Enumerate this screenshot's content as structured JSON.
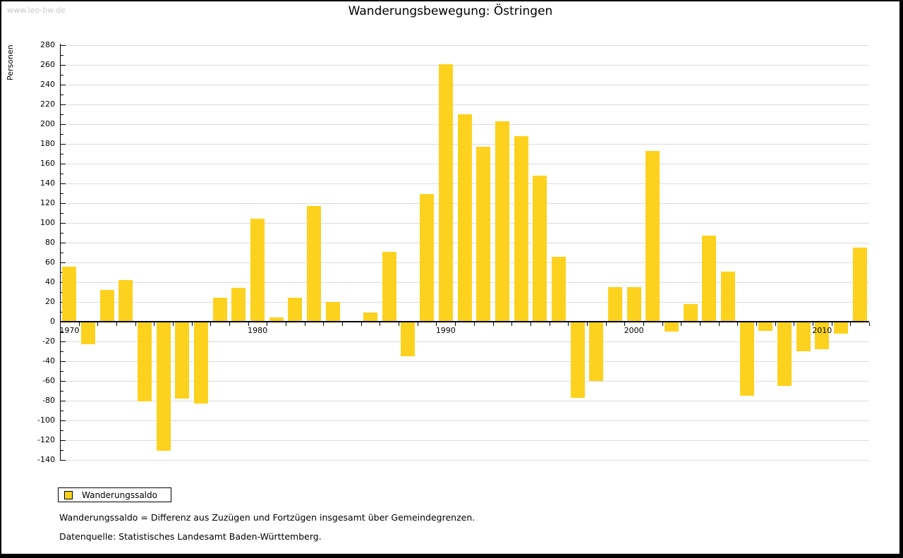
{
  "page": {
    "watermark": "www.leo-bw.de",
    "title": "Wanderungsbewegung: Östringen"
  },
  "chart_data": {
    "type": "bar",
    "title": "Wanderungsbewegung: Östringen",
    "xlabel": "",
    "ylabel": "Personen",
    "ylim": [
      -140,
      280
    ],
    "ytick_step": 20,
    "yticks": [
      280,
      260,
      240,
      220,
      200,
      180,
      160,
      140,
      120,
      100,
      80,
      60,
      40,
      20,
      0,
      -20,
      -40,
      -60,
      -80,
      -100,
      -120,
      -140
    ],
    "grid": true,
    "legend_position": "bottom-left",
    "series_name": "Wanderungssaldo",
    "bar_color": "#FCD21E",
    "categories": [
      1970,
      1971,
      1972,
      1973,
      1974,
      1975,
      1976,
      1977,
      1978,
      1979,
      1980,
      1981,
      1982,
      1983,
      1984,
      1985,
      1986,
      1987,
      1988,
      1989,
      1990,
      1991,
      1992,
      1993,
      1994,
      1995,
      1996,
      1997,
      1998,
      1999,
      2000,
      2001,
      2002,
      2003,
      2004,
      2005,
      2006,
      2007,
      2008,
      2009,
      2010,
      2011,
      2012
    ],
    "values": [
      56,
      -23,
      32,
      42,
      -81,
      -131,
      -78,
      -83,
      24,
      34,
      104,
      4,
      24,
      117,
      20,
      0,
      9,
      71,
      -35,
      129,
      261,
      210,
      177,
      203,
      188,
      148,
      66,
      -77,
      -60,
      35,
      35,
      173,
      -10,
      18,
      87,
      51,
      -75,
      -9,
      -65,
      -30,
      -28,
      -12,
      75
    ],
    "xticks_labeled": [
      1970,
      1980,
      1990,
      2000,
      2010
    ]
  },
  "footnotes": {
    "definition": "Wanderungssaldo = Differenz aus Zuzügen und Fortzügen insgesamt über Gemeindegrenzen.",
    "source": "Datenquelle: Statistisches Landesamt Baden-Württemberg."
  }
}
